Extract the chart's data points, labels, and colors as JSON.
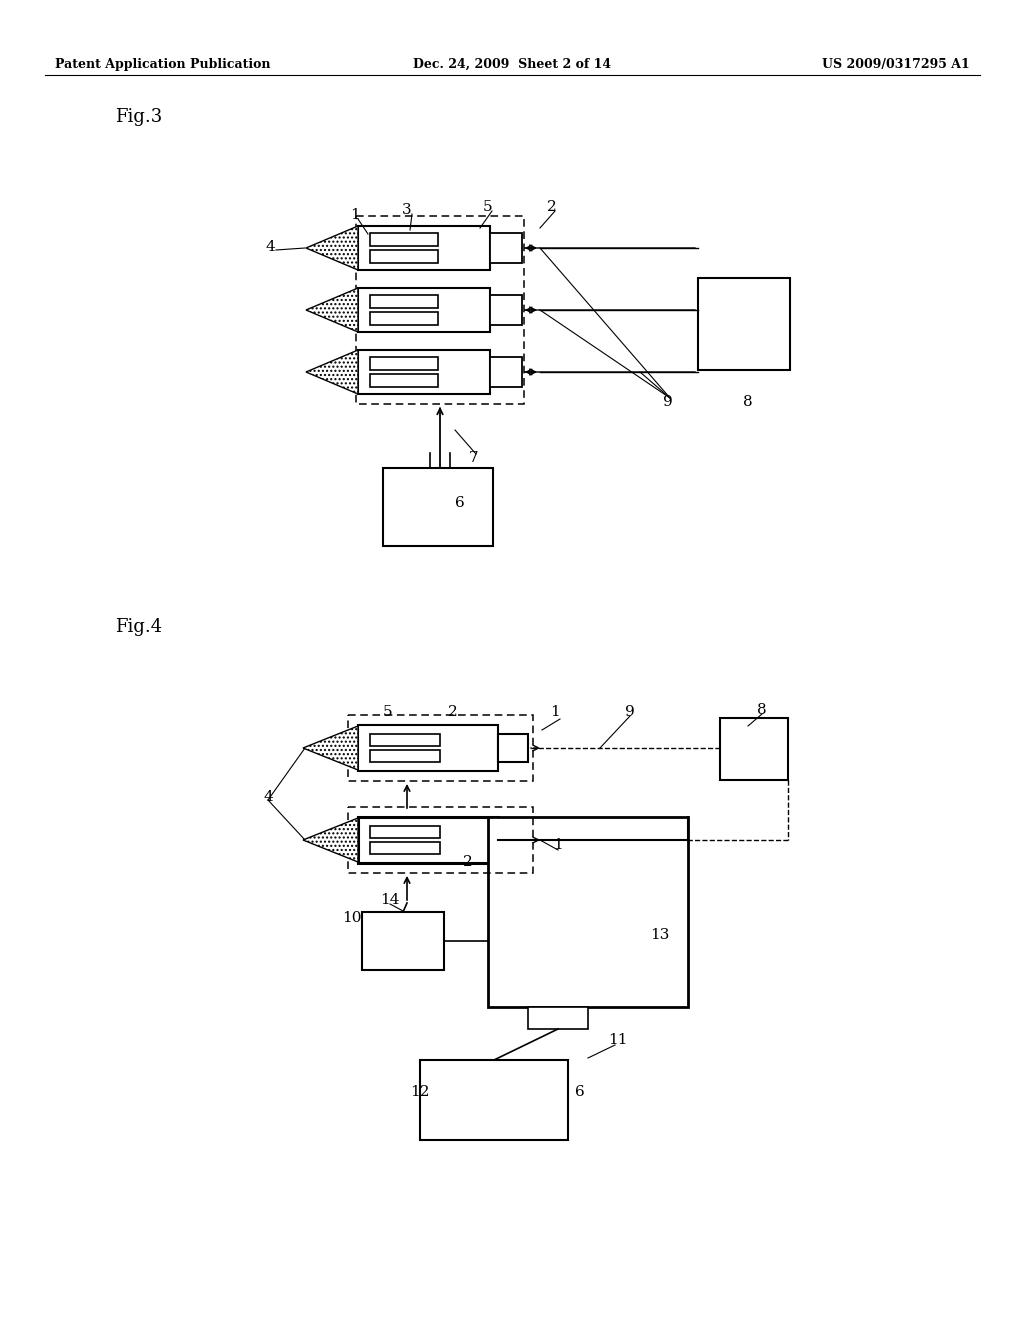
{
  "header_left": "Patent Application Publication",
  "header_mid": "Dec. 24, 2009  Sheet 2 of 14",
  "header_right": "US 2009/0317295 A1",
  "fig3_label": "Fig.3",
  "fig4_label": "Fig.4"
}
